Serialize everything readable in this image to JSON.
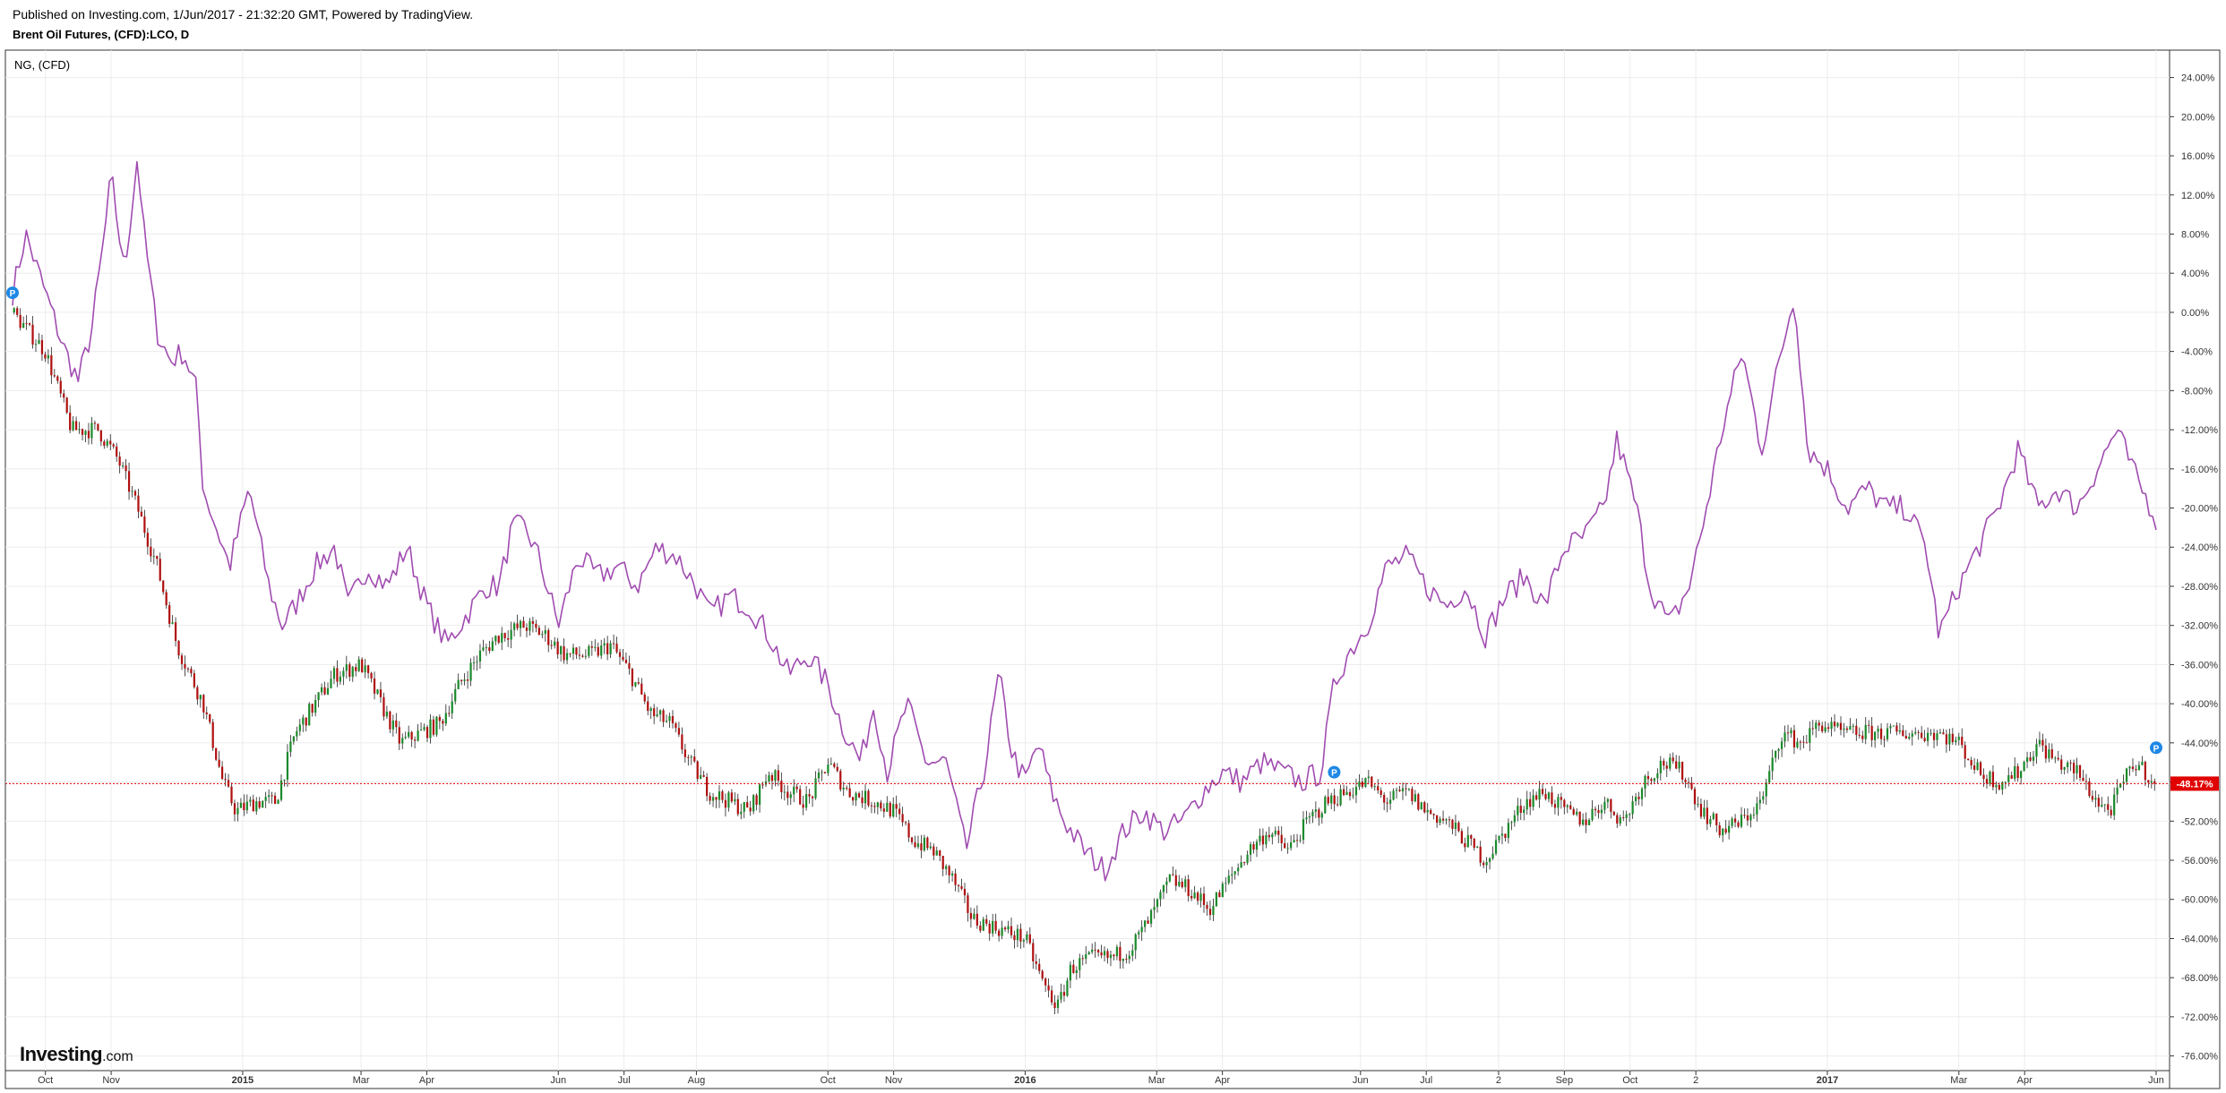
{
  "header": {
    "published": "Published on Investing.com, 1/Jun/2017 - 21:32:20 GMT, Powered by TradingView.",
    "symbol": "Brent Oil Futures, (CFD):LCO, D"
  },
  "logo": {
    "brand": "Investing",
    "domain": ".com"
  },
  "colors": {
    "up": "#1b8a2b",
    "down": "#b01010",
    "wick": "#222222",
    "compare_line": "#a04cb0",
    "last_price": "#e00000",
    "marker": "#1e88e5",
    "grid": "#ececec"
  },
  "chart_data": {
    "type": "line",
    "ylabel": "",
    "yticks": [
      24,
      20,
      16,
      12,
      8,
      4,
      0,
      -4,
      -8,
      -12,
      -16,
      -20,
      -24,
      -28,
      -32,
      -36,
      -40,
      -44,
      -48,
      -52,
      -56,
      -60,
      -64,
      -68,
      -72,
      -76
    ],
    "ylim": [
      -77.5,
      26.8
    ],
    "ytick_suffix": "%",
    "xticks": [
      {
        "label": "Oct",
        "t": 0.5,
        "bold": false
      },
      {
        "label": "Nov",
        "t": 1.5,
        "bold": false
      },
      {
        "label": "2015",
        "t": 3.5,
        "bold": true
      },
      {
        "label": "Mar",
        "t": 5.3,
        "bold": false
      },
      {
        "label": "Apr",
        "t": 6.3,
        "bold": false
      },
      {
        "label": "Jun",
        "t": 8.3,
        "bold": false
      },
      {
        "label": "Jul",
        "t": 9.3,
        "bold": false
      },
      {
        "label": "Aug",
        "t": 10.4,
        "bold": false
      },
      {
        "label": "Oct",
        "t": 12.4,
        "bold": false
      },
      {
        "label": "Nov",
        "t": 13.4,
        "bold": false
      },
      {
        "label": "2016",
        "t": 15.4,
        "bold": true
      },
      {
        "label": "Mar",
        "t": 17.4,
        "bold": false
      },
      {
        "label": "Apr",
        "t": 18.4,
        "bold": false
      },
      {
        "label": "Jun",
        "t": 20.5,
        "bold": false
      },
      {
        "label": "Jul",
        "t": 21.5,
        "bold": false
      },
      {
        "label": "2",
        "t": 22.6,
        "bold": false
      },
      {
        "label": "Sep",
        "t": 23.6,
        "bold": false
      },
      {
        "label": "Oct",
        "t": 24.6,
        "bold": false
      },
      {
        "label": "2",
        "t": 25.6,
        "bold": false
      },
      {
        "label": "2017",
        "t": 27.6,
        "bold": true
      },
      {
        "label": "Mar",
        "t": 29.6,
        "bold": false
      },
      {
        "label": "Apr",
        "t": 30.6,
        "bold": false
      },
      {
        "label": "Jun",
        "t": 32.6,
        "bold": false
      }
    ],
    "t_range": [
      0,
      32.6
    ],
    "last_value_label": "-48.17%",
    "last_value": -48.17,
    "series": [
      {
        "name": "Brent Oil Futures, (CFD):LCO, D",
        "style": "candlestick",
        "points": [
          [
            0,
            0
          ],
          [
            0.5,
            -4
          ],
          [
            0.9,
            -12
          ],
          [
            1.3,
            -12
          ],
          [
            1.6,
            -15
          ],
          [
            1.9,
            -20
          ],
          [
            2.2,
            -26
          ],
          [
            2.5,
            -34
          ],
          [
            2.9,
            -40
          ],
          [
            3.2,
            -48
          ],
          [
            3.4,
            -51
          ],
          [
            3.7,
            -50
          ],
          [
            4.0,
            -50
          ],
          [
            4.3,
            -43
          ],
          [
            4.6,
            -40
          ],
          [
            4.9,
            -37
          ],
          [
            5.3,
            -36
          ],
          [
            5.6,
            -40
          ],
          [
            5.9,
            -44
          ],
          [
            6.2,
            -43
          ],
          [
            6.5,
            -42
          ],
          [
            6.8,
            -38
          ],
          [
            7.1,
            -35
          ],
          [
            7.4,
            -33
          ],
          [
            7.8,
            -32
          ],
          [
            8.1,
            -33
          ],
          [
            8.4,
            -35
          ],
          [
            8.8,
            -35
          ],
          [
            9.1,
            -34
          ],
          [
            9.4,
            -37
          ],
          [
            9.7,
            -41
          ],
          [
            10.0,
            -42
          ],
          [
            10.3,
            -46
          ],
          [
            10.6,
            -49
          ],
          [
            10.9,
            -50
          ],
          [
            11.2,
            -51
          ],
          [
            11.5,
            -47
          ],
          [
            11.8,
            -49
          ],
          [
            12.1,
            -50
          ],
          [
            12.4,
            -46
          ],
          [
            12.7,
            -49
          ],
          [
            13.1,
            -50
          ],
          [
            13.4,
            -51
          ],
          [
            13.7,
            -54
          ],
          [
            14.0,
            -55
          ],
          [
            14.3,
            -58
          ],
          [
            14.6,
            -62
          ],
          [
            15.0,
            -63
          ],
          [
            15.4,
            -64
          ],
          [
            15.7,
            -69
          ],
          [
            15.9,
            -71
          ],
          [
            16.1,
            -67
          ],
          [
            16.4,
            -66
          ],
          [
            16.7,
            -66
          ],
          [
            17.0,
            -65
          ],
          [
            17.3,
            -62
          ],
          [
            17.6,
            -58
          ],
          [
            17.9,
            -59
          ],
          [
            18.2,
            -61
          ],
          [
            18.5,
            -58
          ],
          [
            18.8,
            -55
          ],
          [
            19.1,
            -53
          ],
          [
            19.4,
            -55
          ],
          [
            19.7,
            -52
          ],
          [
            20.0,
            -50
          ],
          [
            20.3,
            -49
          ],
          [
            20.6,
            -48
          ],
          [
            20.9,
            -50
          ],
          [
            21.2,
            -49
          ],
          [
            21.5,
            -51
          ],
          [
            21.8,
            -52
          ],
          [
            22.1,
            -54
          ],
          [
            22.4,
            -56
          ],
          [
            22.7,
            -53
          ],
          [
            23.0,
            -50
          ],
          [
            23.3,
            -49
          ],
          [
            23.6,
            -51
          ],
          [
            23.9,
            -52
          ],
          [
            24.2,
            -50
          ],
          [
            24.5,
            -52
          ],
          [
            24.8,
            -48
          ],
          [
            25.1,
            -46
          ],
          [
            25.4,
            -47
          ],
          [
            25.7,
            -51
          ],
          [
            26.0,
            -53
          ],
          [
            26.3,
            -52
          ],
          [
            26.6,
            -50
          ],
          [
            26.9,
            -43
          ],
          [
            27.2,
            -44
          ],
          [
            27.5,
            -42
          ],
          [
            27.8,
            -43
          ],
          [
            28.1,
            -43
          ],
          [
            28.4,
            -43
          ],
          [
            28.7,
            -43
          ],
          [
            29.0,
            -43
          ],
          [
            29.3,
            -43
          ],
          [
            29.6,
            -44
          ],
          [
            29.9,
            -47
          ],
          [
            30.2,
            -48
          ],
          [
            30.5,
            -47
          ],
          [
            30.8,
            -44
          ],
          [
            31.1,
            -46
          ],
          [
            31.4,
            -47
          ],
          [
            31.7,
            -50
          ],
          [
            31.9,
            -51
          ],
          [
            32.1,
            -48
          ],
          [
            32.3,
            -46
          ],
          [
            32.6,
            -48.17
          ]
        ]
      },
      {
        "name": "NG, (CFD)",
        "style": "line",
        "points": [
          [
            0,
            2
          ],
          [
            0.2,
            8
          ],
          [
            0.5,
            2
          ],
          [
            0.8,
            -4
          ],
          [
            1.0,
            -7
          ],
          [
            1.2,
            -2
          ],
          [
            1.4,
            8
          ],
          [
            1.5,
            14
          ],
          [
            1.7,
            4
          ],
          [
            1.9,
            16
          ],
          [
            2.0,
            8
          ],
          [
            2.2,
            -2
          ],
          [
            2.4,
            -5
          ],
          [
            2.6,
            -4
          ],
          [
            2.8,
            -8
          ],
          [
            2.9,
            -18
          ],
          [
            3.1,
            -22
          ],
          [
            3.3,
            -26
          ],
          [
            3.6,
            -18
          ],
          [
            3.9,
            -28
          ],
          [
            4.1,
            -32
          ],
          [
            4.3,
            -30
          ],
          [
            4.6,
            -26
          ],
          [
            4.9,
            -24
          ],
          [
            5.1,
            -30
          ],
          [
            5.4,
            -26
          ],
          [
            5.7,
            -28
          ],
          [
            6.0,
            -24
          ],
          [
            6.3,
            -30
          ],
          [
            6.6,
            -34
          ],
          [
            6.9,
            -31
          ],
          [
            7.2,
            -28
          ],
          [
            7.4,
            -28
          ],
          [
            7.6,
            -22
          ],
          [
            7.8,
            -22
          ],
          [
            8.0,
            -25
          ],
          [
            8.3,
            -32
          ],
          [
            8.6,
            -25
          ],
          [
            8.9,
            -27
          ],
          [
            9.2,
            -26
          ],
          [
            9.5,
            -28
          ],
          [
            9.8,
            -24
          ],
          [
            10.1,
            -25
          ],
          [
            10.4,
            -28
          ],
          [
            10.6,
            -31
          ],
          [
            10.9,
            -29
          ],
          [
            11.2,
            -30
          ],
          [
            11.5,
            -33
          ],
          [
            11.8,
            -37
          ],
          [
            12.1,
            -35
          ],
          [
            12.4,
            -38
          ],
          [
            12.6,
            -42
          ],
          [
            12.9,
            -46
          ],
          [
            13.1,
            -40
          ],
          [
            13.3,
            -47
          ],
          [
            13.6,
            -40
          ],
          [
            13.9,
            -46
          ],
          [
            14.2,
            -46
          ],
          [
            14.5,
            -55
          ],
          [
            14.8,
            -46
          ],
          [
            15.0,
            -37
          ],
          [
            15.2,
            -45
          ],
          [
            15.4,
            -48
          ],
          [
            15.6,
            -44
          ],
          [
            15.8,
            -49
          ],
          [
            16.0,
            -52
          ],
          [
            16.3,
            -55
          ],
          [
            16.6,
            -57
          ],
          [
            16.9,
            -53
          ],
          [
            17.2,
            -51
          ],
          [
            17.5,
            -53
          ],
          [
            17.8,
            -52
          ],
          [
            18.1,
            -49
          ],
          [
            18.4,
            -47
          ],
          [
            18.7,
            -48
          ],
          [
            19.0,
            -46
          ],
          [
            19.3,
            -47
          ],
          [
            19.6,
            -48
          ],
          [
            19.9,
            -47
          ],
          [
            20.1,
            -38
          ],
          [
            20.3,
            -35
          ],
          [
            20.6,
            -32
          ],
          [
            20.9,
            -26
          ],
          [
            21.2,
            -25
          ],
          [
            21.5,
            -28
          ],
          [
            21.8,
            -30
          ],
          [
            22.1,
            -28
          ],
          [
            22.4,
            -33
          ],
          [
            22.7,
            -29
          ],
          [
            23.0,
            -27
          ],
          [
            23.3,
            -30
          ],
          [
            23.6,
            -24
          ],
          [
            23.9,
            -23
          ],
          [
            24.2,
            -20
          ],
          [
            24.4,
            -13
          ],
          [
            24.7,
            -20
          ],
          [
            24.9,
            -28
          ],
          [
            25.2,
            -32
          ],
          [
            25.5,
            -28
          ],
          [
            25.7,
            -22
          ],
          [
            26.0,
            -12
          ],
          [
            26.3,
            -4
          ],
          [
            26.6,
            -14
          ],
          [
            26.9,
            -4
          ],
          [
            27.1,
            2
          ],
          [
            27.3,
            -14
          ],
          [
            27.6,
            -16
          ],
          [
            27.9,
            -20
          ],
          [
            28.2,
            -18
          ],
          [
            28.5,
            -20
          ],
          [
            28.8,
            -20
          ],
          [
            29.1,
            -24
          ],
          [
            29.3,
            -33
          ],
          [
            29.6,
            -28
          ],
          [
            29.9,
            -24
          ],
          [
            30.2,
            -20
          ],
          [
            30.5,
            -14
          ],
          [
            30.8,
            -20
          ],
          [
            31.1,
            -18
          ],
          [
            31.4,
            -20
          ],
          [
            31.7,
            -16
          ],
          [
            32.0,
            -12
          ],
          [
            32.3,
            -17
          ],
          [
            32.6,
            -21
          ]
        ]
      }
    ],
    "markers": [
      {
        "label": "P",
        "t": 0.0,
        "y": 2
      },
      {
        "label": "P",
        "t": 20.1,
        "y": -47
      },
      {
        "label": "P",
        "t": 32.6,
        "y": -44.5
      }
    ]
  }
}
